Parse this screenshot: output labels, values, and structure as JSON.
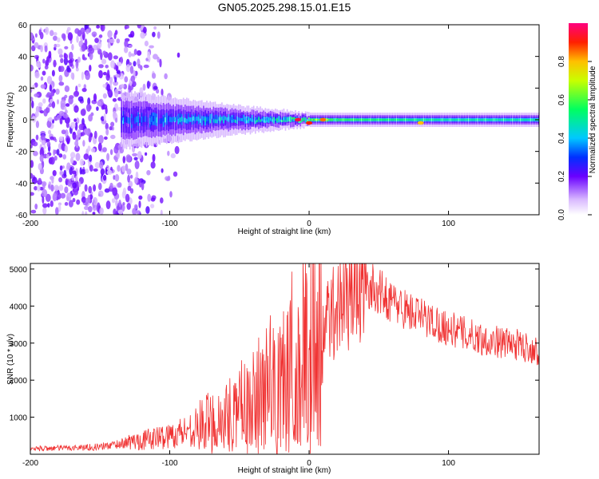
{
  "title": "GN05.2025.298.15.01.E15",
  "chart_data": [
    {
      "type": "heatmap",
      "title": "GN05.2025.298.15.01.E15",
      "xlabel": "Height of straight line (km)",
      "ylabel": "Frequency (Hz)",
      "xlim": [
        -200,
        165
      ],
      "ylim": [
        -60,
        60
      ],
      "xticks": [
        -200,
        -100,
        0,
        100
      ],
      "xtick_labels": [
        "-200",
        "-100",
        "0",
        "100"
      ],
      "yticks": [
        60,
        40,
        20,
        0,
        -20,
        -40,
        -60
      ],
      "ytick_labels": [
        "60",
        "40",
        "20",
        "0",
        "-20",
        "-40",
        "-60"
      ],
      "colorbar": {
        "label": "Normalized spectral amplitude",
        "range": [
          0,
          1
        ],
        "ticks": [
          0.0,
          0.2,
          0.4,
          0.6,
          0.8
        ],
        "tick_labels": [
          "0.0",
          "0.2",
          "0.4",
          "0.6",
          "0.8"
        ]
      },
      "series": [
        {
          "name": "Low-amplitude noise (scattered)",
          "x_range": [
            -200,
            -110
          ],
          "freq_range": [
            -60,
            60
          ],
          "amplitude": 0.15
        },
        {
          "name": "Signal band (narrowing)",
          "x": [
            -130,
            -100,
            -50,
            -10,
            0,
            50,
            100,
            165
          ],
          "half_width_hz": [
            10,
            8,
            5,
            3,
            2.5,
            2.5,
            2.5,
            2.5
          ],
          "center_amplitude": [
            0.3,
            0.35,
            0.4,
            0.5,
            0.6,
            0.55,
            0.5,
            0.5
          ]
        },
        {
          "name": "High-amplitude peaks",
          "x": [
            -8,
            0,
            10,
            80
          ],
          "freq": [
            0,
            -2,
            0,
            -2
          ],
          "amplitude": [
            0.95,
            0.9,
            0.85,
            0.8
          ]
        }
      ]
    },
    {
      "type": "line",
      "xlabel": "Height of straight line (km)",
      "ylabel": "SNR (10 * v/v)",
      "xlim": [
        -200,
        165
      ],
      "ylim": [
        0,
        5150
      ],
      "xticks": [
        -200,
        -100,
        0,
        100
      ],
      "xtick_labels": [
        "-200",
        "-100",
        "0",
        "100"
      ],
      "yticks": [
        1000,
        2000,
        3000,
        4000,
        5000
      ],
      "ytick_labels": [
        "1000",
        "2000",
        "3000",
        "4000",
        "5000"
      ],
      "series": [
        {
          "name": "SNR",
          "color": "#f03232",
          "x": [
            -200,
            -175,
            -150,
            -125,
            -100,
            -75,
            -50,
            -35,
            -20,
            -10,
            0,
            10,
            20,
            30,
            40,
            50,
            60,
            75,
            100,
            125,
            150,
            165
          ],
          "values": [
            150,
            170,
            200,
            350,
            500,
            800,
            1100,
            1600,
            1900,
            2300,
            2700,
            3400,
            4000,
            4400,
            4600,
            4400,
            4100,
            3800,
            3400,
            3100,
            2950,
            2800
          ]
        }
      ]
    }
  ]
}
